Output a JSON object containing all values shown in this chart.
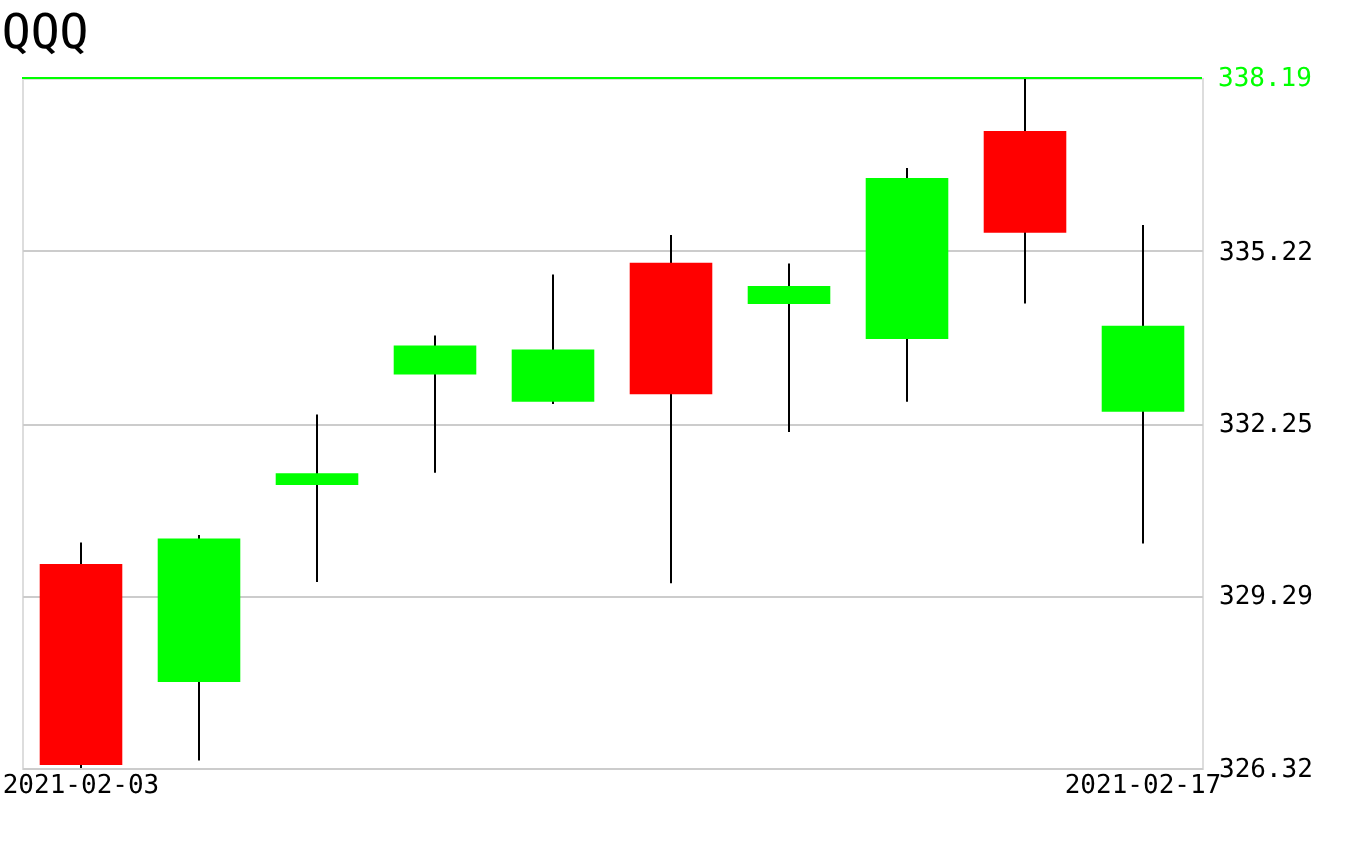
{
  "chart_data": {
    "type": "candlestick",
    "title": "QQQ",
    "categories": [
      "2021-02-03",
      null,
      null,
      null,
      null,
      null,
      null,
      null,
      null,
      "2021-02-17"
    ],
    "ohlc": [
      [
        329.83,
        330.2,
        326.32,
        326.37
      ],
      [
        327.8,
        330.33,
        326.45,
        330.27
      ],
      [
        331.19,
        332.4,
        329.52,
        331.39
      ],
      [
        333.09,
        333.76,
        331.4,
        333.59
      ],
      [
        332.62,
        334.81,
        332.58,
        333.52
      ],
      [
        335.01,
        335.49,
        329.5,
        332.75
      ],
      [
        334.3,
        335.0,
        332.1,
        334.61
      ],
      [
        333.7,
        336.64,
        332.62,
        336.47
      ],
      [
        337.28,
        338.19,
        334.31,
        335.53
      ],
      [
        332.45,
        335.66,
        330.18,
        333.93
      ]
    ],
    "colors": [
      "#ff0000",
      "#00ff00",
      "#00ff00",
      "#00ff00",
      "#00ff00",
      "#ff0000",
      "#00ff00",
      "#00ff00",
      "#ff0000",
      "#00ff00"
    ],
    "ylim": [
      326.32,
      338.19
    ],
    "yticks": [
      326.32,
      329.29,
      332.25,
      335.22
    ],
    "grid": "y",
    "ref_lines": [
      {
        "axis": "y",
        "value": 338.19,
        "label": "338.19",
        "color": "#00ff00"
      }
    ]
  }
}
